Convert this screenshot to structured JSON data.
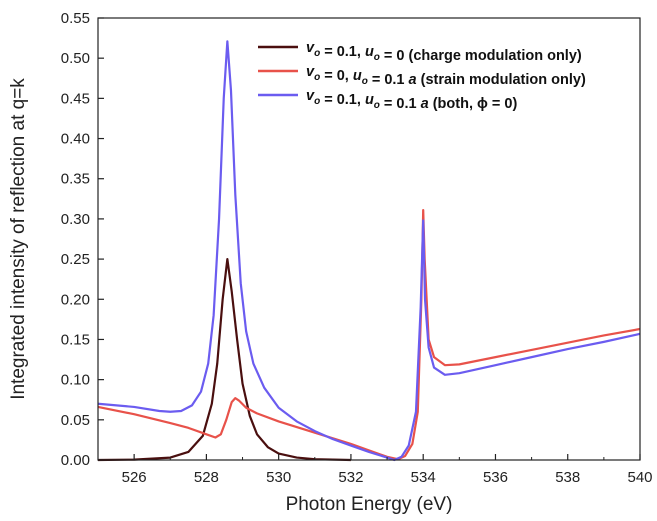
{
  "chart_data": {
    "type": "line",
    "xlabel": "Photon Energy (eV)",
    "ylabel": "Integrated intensity of reflection at q=k",
    "xlim": [
      525,
      540
    ],
    "ylim": [
      0,
      0.55
    ],
    "x_ticks": [
      "526",
      "528",
      "530",
      "532",
      "534",
      "536",
      "538",
      "540"
    ],
    "y_ticks": [
      "0.00",
      "0.05",
      "0.10",
      "0.15",
      "0.20",
      "0.25",
      "0.30",
      "0.35",
      "0.40",
      "0.45",
      "0.50",
      "0.55"
    ],
    "grid": false,
    "legend_position": "top-right",
    "series": [
      {
        "name": "charge only",
        "legend": {
          "pre": "v",
          "pre_sub": "o",
          "mid1": " = 0.1, ",
          "var2": "u",
          "var2_sub": "o",
          "mid2": " = 0",
          "tail": " (charge modulation only)"
        },
        "color": "#4a0f0f",
        "points": [
          [
            525.0,
            0.0
          ],
          [
            526.0,
            0.0005
          ],
          [
            527.0,
            0.003
          ],
          [
            527.5,
            0.01
          ],
          [
            527.9,
            0.03
          ],
          [
            528.15,
            0.07
          ],
          [
            528.3,
            0.12
          ],
          [
            528.45,
            0.2
          ],
          [
            528.58,
            0.25
          ],
          [
            528.7,
            0.21
          ],
          [
            528.85,
            0.15
          ],
          [
            529.0,
            0.095
          ],
          [
            529.2,
            0.055
          ],
          [
            529.4,
            0.032
          ],
          [
            529.7,
            0.016
          ],
          [
            530.0,
            0.008
          ],
          [
            530.5,
            0.003
          ],
          [
            531.0,
            0.001
          ],
          [
            532.0,
            0.0
          ]
        ]
      },
      {
        "name": "strain only",
        "legend": {
          "pre": "v",
          "pre_sub": "o",
          "mid1": " = 0, ",
          "var2": "u",
          "var2_sub": "o",
          "mid2": " = 0.1 ",
          "mid2_it": "a",
          "tail": " (strain modulation only)"
        },
        "color": "#e8524a",
        "points": [
          [
            525.0,
            0.066
          ],
          [
            526.0,
            0.057
          ],
          [
            527.0,
            0.046
          ],
          [
            527.5,
            0.04
          ],
          [
            528.0,
            0.032
          ],
          [
            528.25,
            0.028
          ],
          [
            528.4,
            0.032
          ],
          [
            528.55,
            0.05
          ],
          [
            528.7,
            0.072
          ],
          [
            528.8,
            0.077
          ],
          [
            528.9,
            0.074
          ],
          [
            529.1,
            0.065
          ],
          [
            529.4,
            0.058
          ],
          [
            530.0,
            0.048
          ],
          [
            530.5,
            0.041
          ],
          [
            531.0,
            0.034
          ],
          [
            531.5,
            0.027
          ],
          [
            532.0,
            0.02
          ],
          [
            532.5,
            0.012
          ],
          [
            533.0,
            0.004
          ],
          [
            533.3,
            0.001
          ],
          [
            533.5,
            0.005
          ],
          [
            533.7,
            0.02
          ],
          [
            533.85,
            0.06
          ],
          [
            533.95,
            0.2
          ],
          [
            534.0,
            0.311
          ],
          [
            534.04,
            0.25
          ],
          [
            534.15,
            0.15
          ],
          [
            534.3,
            0.128
          ],
          [
            534.6,
            0.118
          ],
          [
            535.0,
            0.119
          ],
          [
            536.0,
            0.128
          ],
          [
            537.0,
            0.137
          ],
          [
            538.0,
            0.146
          ],
          [
            539.0,
            0.155
          ],
          [
            540.0,
            0.163
          ]
        ]
      },
      {
        "name": "both",
        "legend": {
          "pre": "v",
          "pre_sub": "o",
          "mid1": " = 0.1, ",
          "var2": "u",
          "var2_sub": "o",
          "mid2": " = 0.1 ",
          "mid2_it": "a",
          "tail": " (both, ϕ = 0)"
        },
        "color": "#6b5cf0",
        "points": [
          [
            525.0,
            0.07
          ],
          [
            526.0,
            0.066
          ],
          [
            526.7,
            0.061
          ],
          [
            527.0,
            0.06
          ],
          [
            527.3,
            0.061
          ],
          [
            527.6,
            0.068
          ],
          [
            527.85,
            0.085
          ],
          [
            528.05,
            0.12
          ],
          [
            528.2,
            0.18
          ],
          [
            528.35,
            0.3
          ],
          [
            528.48,
            0.45
          ],
          [
            528.58,
            0.521
          ],
          [
            528.68,
            0.46
          ],
          [
            528.8,
            0.33
          ],
          [
            528.95,
            0.22
          ],
          [
            529.1,
            0.16
          ],
          [
            529.3,
            0.12
          ],
          [
            529.6,
            0.09
          ],
          [
            530.0,
            0.065
          ],
          [
            530.5,
            0.048
          ],
          [
            531.0,
            0.036
          ],
          [
            531.5,
            0.026
          ],
          [
            532.0,
            0.018
          ],
          [
            532.5,
            0.01
          ],
          [
            533.0,
            0.003
          ],
          [
            533.2,
            0.0
          ],
          [
            533.4,
            0.004
          ],
          [
            533.6,
            0.018
          ],
          [
            533.8,
            0.06
          ],
          [
            533.93,
            0.19
          ],
          [
            534.0,
            0.298
          ],
          [
            534.05,
            0.2
          ],
          [
            534.15,
            0.14
          ],
          [
            534.3,
            0.115
          ],
          [
            534.6,
            0.106
          ],
          [
            535.0,
            0.108
          ],
          [
            536.0,
            0.118
          ],
          [
            537.0,
            0.128
          ],
          [
            538.0,
            0.138
          ],
          [
            539.0,
            0.147
          ],
          [
            540.0,
            0.157
          ]
        ]
      }
    ]
  }
}
